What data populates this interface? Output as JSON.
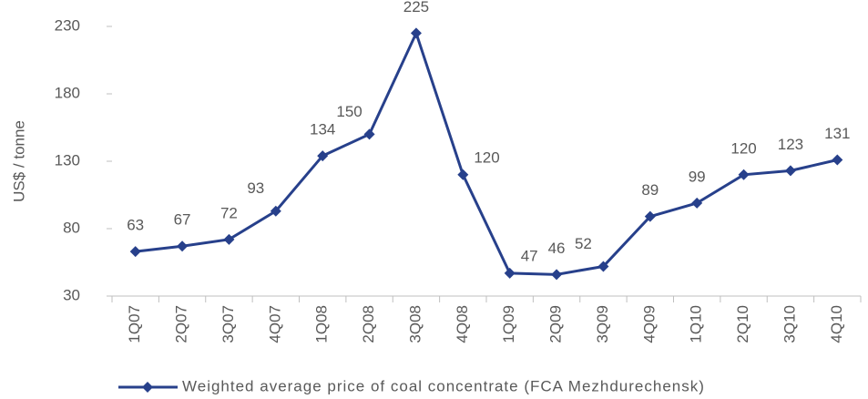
{
  "chart_data": {
    "type": "line",
    "y_label": "US$ / tonne",
    "categories": [
      "1Q07",
      "2Q07",
      "3Q07",
      "4Q07",
      "1Q08",
      "2Q08",
      "3Q08",
      "4Q08",
      "1Q09",
      "2Q09",
      "3Q09",
      "4Q09",
      "1Q10",
      "2Q10",
      "3Q10",
      "4Q10"
    ],
    "series": [
      {
        "name": "Weighted average price of coal concentrate (FCA Mezhdurechensk)",
        "color": "#27408b",
        "values": [
          63,
          67,
          72,
          93,
          134,
          150,
          225,
          120,
          47,
          46,
          52,
          89,
          99,
          120,
          123,
          131
        ]
      }
    ],
    "ylim": [
      30,
      230
    ],
    "yticks": [
      30,
      80,
      130,
      180,
      230
    ],
    "grid": false,
    "legend": "bottom"
  }
}
